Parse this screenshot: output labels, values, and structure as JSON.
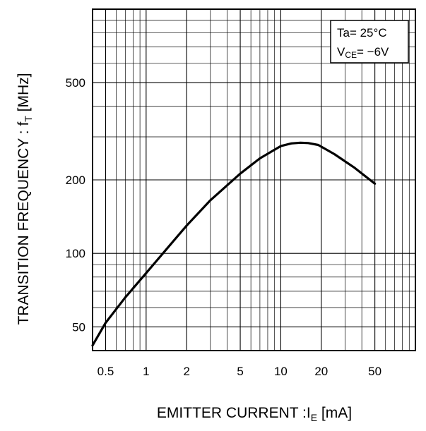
{
  "chart_data": {
    "type": "line",
    "xlabel": "EMITTER CURRENT :I",
    "xlabel_sub": "E",
    "xlabel_unit": " [mA]",
    "ylabel": "TRANSITION FREQUENCY : f",
    "ylabel_sub": "T",
    "ylabel_unit": " [MHz]",
    "x_scale": "log",
    "y_scale": "log",
    "xlim": [
      0.4,
      100
    ],
    "ylim": [
      40,
      1000
    ],
    "grid": true,
    "x_ticks": [
      {
        "value": 0.5,
        "label": "0.5"
      },
      {
        "value": 1,
        "label": "1"
      },
      {
        "value": 2,
        "label": "2"
      },
      {
        "value": 5,
        "label": "5"
      },
      {
        "value": 10,
        "label": "10"
      },
      {
        "value": 20,
        "label": "20"
      },
      {
        "value": 50,
        "label": "50"
      }
    ],
    "y_ticks": [
      {
        "value": 50,
        "label": "50"
      },
      {
        "value": 100,
        "label": "100"
      },
      {
        "value": 200,
        "label": "200"
      },
      {
        "value": 500,
        "label": "500"
      }
    ],
    "legend": {
      "position": "top-right",
      "line1": "Ta= 25°C",
      "line2_main": "V",
      "line2_sub": "CE",
      "line2_rest": "= −6V"
    },
    "series": [
      {
        "color": "#000000",
        "x": [
          0.4,
          0.5,
          0.7,
          1,
          1.5,
          2,
          3,
          5,
          7,
          10,
          12,
          14,
          16,
          19,
          25,
          35,
          50
        ],
        "y": [
          42,
          52,
          66,
          83,
          108,
          130,
          165,
          212,
          245,
          275,
          282,
          284,
          283,
          278,
          255,
          225,
          193
        ]
      }
    ]
  }
}
